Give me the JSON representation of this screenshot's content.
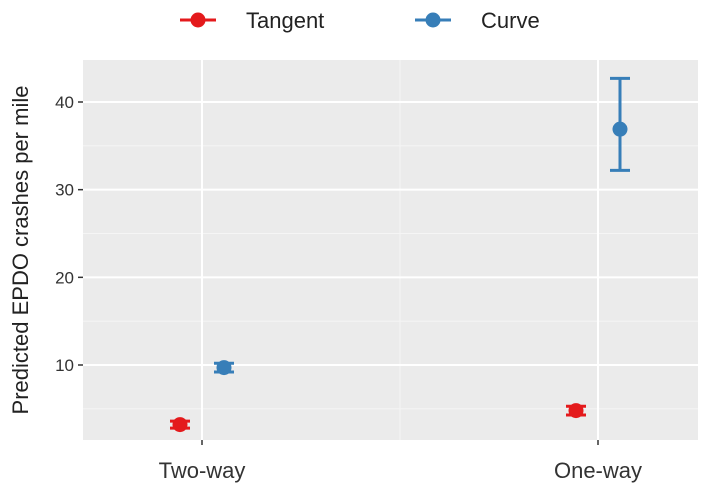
{
  "chart_data": {
    "type": "scatter",
    "title": "",
    "xlabel": "",
    "ylabel": "Predicted EPDO crashes per mile",
    "categories": [
      "Two-way",
      "One-way"
    ],
    "ylim": [
      0,
      45
    ],
    "yticks": [
      10,
      20,
      30,
      40
    ],
    "grid": true,
    "legend_position": "top",
    "series": [
      {
        "name": "Tangent",
        "color": "#e41a1c",
        "values": [
          3.2,
          4.8
        ],
        "lower": [
          2.8,
          4.3
        ],
        "upper": [
          3.6,
          5.3
        ]
      },
      {
        "name": "Curve",
        "color": "#377eb8",
        "values": [
          9.7,
          36.9
        ],
        "lower": [
          9.2,
          32.2
        ],
        "upper": [
          10.2,
          42.7
        ]
      }
    ]
  }
}
